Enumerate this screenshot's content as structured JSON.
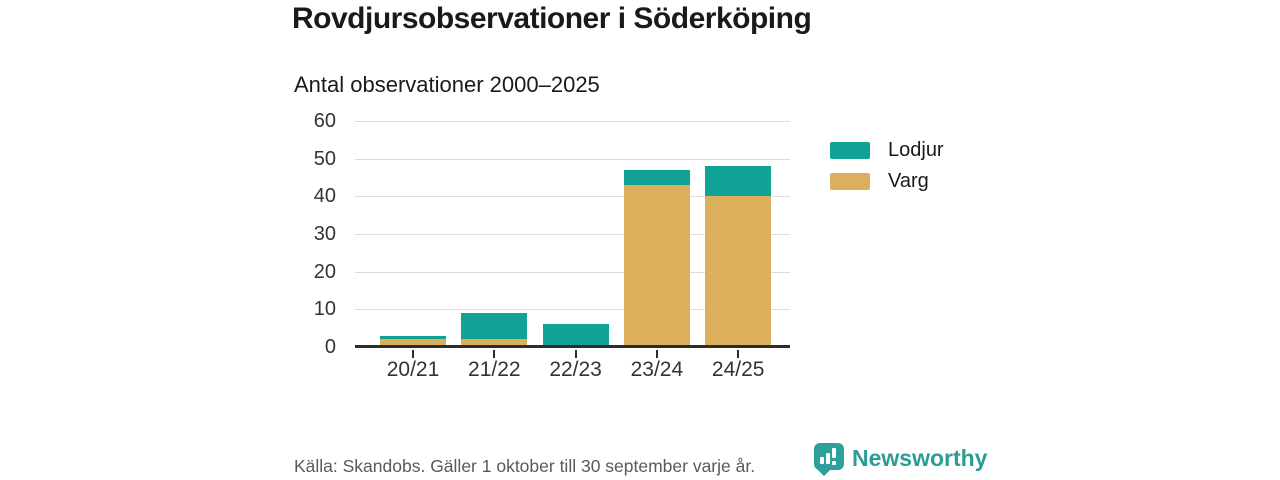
{
  "title": "Rovdjursobservationer i Söderköping",
  "subtitle": "Antal observationer 2000–2025",
  "footer": {
    "source": "Källa: Skandobs. Gäller 1 oktober till 30 september varje år.",
    "brand": "Newsworthy"
  },
  "colors": {
    "lodjur": "#11a296",
    "varg": "#dcb05a",
    "grid": "#dddddd",
    "axis": "#2d2d2d",
    "brand_teal": "#2ba199"
  },
  "chart_data": {
    "type": "bar",
    "stacked": true,
    "title": "Rovdjursobservationer i Söderköping",
    "subtitle": "Antal observationer 2000–2025",
    "categories": [
      "20/21",
      "21/22",
      "22/23",
      "23/24",
      "24/25"
    ],
    "series": [
      {
        "name": "Varg",
        "color_key": "varg",
        "values": [
          2,
          2,
          0,
          43,
          40
        ]
      },
      {
        "name": "Lodjur",
        "color_key": "lodjur",
        "values": [
          1,
          7,
          6,
          4,
          8
        ]
      }
    ],
    "totals": [
      3,
      9,
      6,
      47,
      48
    ],
    "legend": [
      {
        "label": "Lodjur",
        "color_key": "lodjur"
      },
      {
        "label": "Varg",
        "color_key": "varg"
      }
    ],
    "legend_position": "right",
    "xlabel": "",
    "ylabel": "",
    "ylim": [
      0,
      60
    ],
    "yticks": [
      0,
      10,
      20,
      30,
      40,
      50,
      60
    ],
    "grid": true
  }
}
